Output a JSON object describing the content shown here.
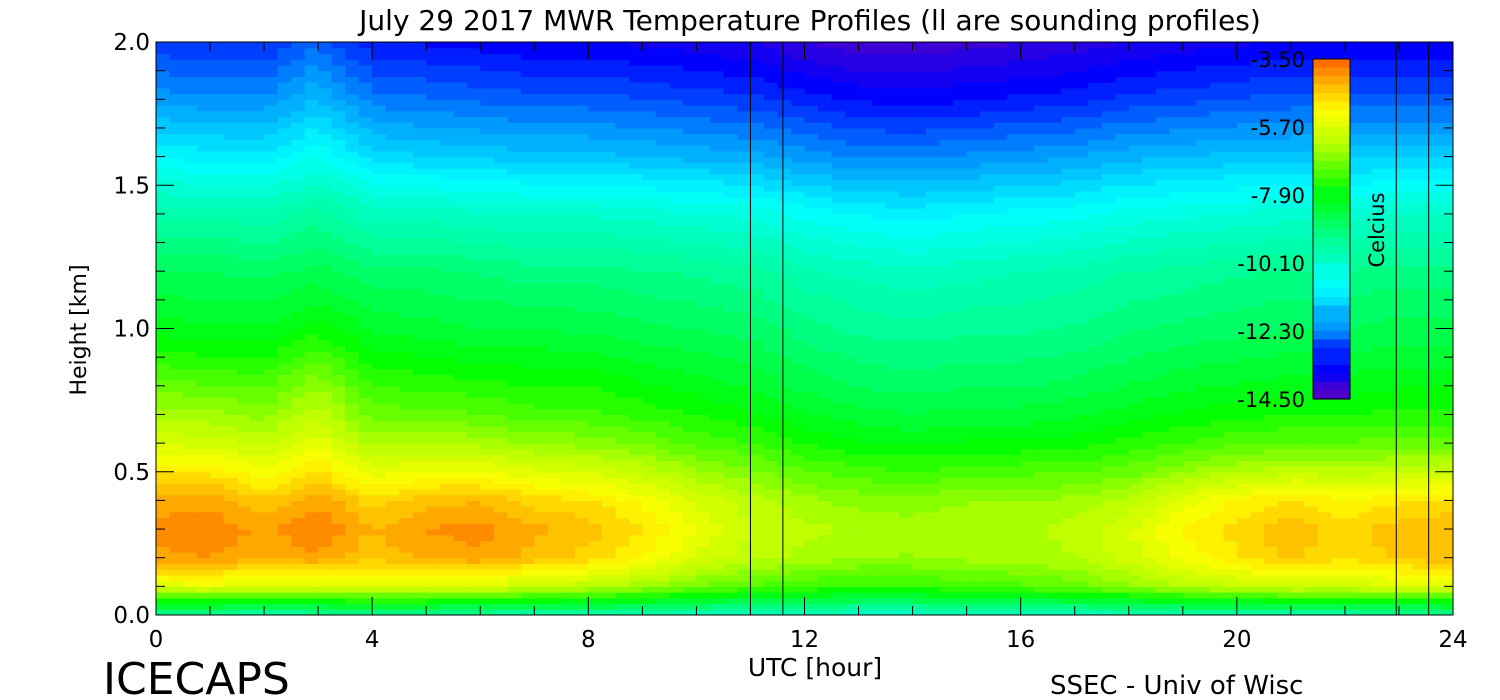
{
  "chart_data": {
    "type": "heatmap",
    "title": "July 29 2017 MWR Temperature Profiles (ll are sounding profiles)",
    "xlabel": "UTC [hour]",
    "ylabel": "Height [km]",
    "xlim": [
      0,
      24
    ],
    "ylim": [
      0,
      2
    ],
    "x_ticks": [
      "0",
      "4",
      "8",
      "12",
      "16",
      "20",
      "24"
    ],
    "y_ticks": [
      "0.0",
      "0.5",
      "1.0",
      "1.5",
      "2.0"
    ],
    "colorbar": {
      "label": "Celcius",
      "ticks": [
        "-3.50",
        "-5.70",
        "-7.90",
        "-10.10",
        "-12.30",
        "-14.50"
      ],
      "range": [
        -14.5,
        -3.5
      ]
    },
    "sounding_times_utc": [
      11.0,
      11.6,
      22.95,
      23.55
    ],
    "heights_km": [
      0.0,
      0.05,
      0.1,
      0.2,
      0.3,
      0.4,
      0.5,
      0.6,
      0.7,
      0.8,
      1.0,
      1.2,
      1.4,
      1.6,
      1.8,
      2.0
    ],
    "profiles": [
      {
        "utc": 0,
        "temps": [
          -9.5,
          -7.5,
          -5.5,
          -4.0,
          -3.8,
          -4.1,
          -4.8,
          -5.6,
          -6.2,
          -6.8,
          -7.9,
          -8.6,
          -9.5,
          -10.8,
          -12.0,
          -12.9
        ]
      },
      {
        "utc": 1,
        "temps": [
          -9.5,
          -7.5,
          -5.4,
          -3.9,
          -3.7,
          -4.0,
          -4.8,
          -5.7,
          -6.3,
          -6.9,
          -8.0,
          -8.6,
          -9.5,
          -10.9,
          -12.1,
          -13.0
        ]
      },
      {
        "utc": 2,
        "temps": [
          -9.6,
          -7.6,
          -5.6,
          -4.2,
          -4.0,
          -4.4,
          -5.2,
          -5.9,
          -6.5,
          -7.0,
          -8.0,
          -8.7,
          -9.6,
          -11.0,
          -12.1,
          -13.0
        ]
      },
      {
        "utc": 3,
        "temps": [
          -9.5,
          -7.6,
          -5.5,
          -4.0,
          -3.6,
          -4.0,
          -4.7,
          -5.4,
          -5.9,
          -6.4,
          -7.6,
          -8.5,
          -9.3,
          -10.5,
          -11.6,
          -12.5
        ]
      },
      {
        "utc": 4,
        "temps": [
          -9.4,
          -7.4,
          -5.6,
          -4.4,
          -4.2,
          -4.6,
          -5.4,
          -6.2,
          -6.8,
          -7.2,
          -8.1,
          -8.8,
          -9.8,
          -11.2,
          -12.3,
          -13.2
        ]
      },
      {
        "utc": 5,
        "temps": [
          -9.5,
          -7.5,
          -5.5,
          -4.1,
          -3.9,
          -4.3,
          -5.2,
          -6.1,
          -6.8,
          -7.3,
          -8.2,
          -8.8,
          -9.8,
          -11.3,
          -12.4,
          -13.3
        ]
      },
      {
        "utc": 6,
        "temps": [
          -9.5,
          -7.6,
          -5.6,
          -4.0,
          -3.8,
          -4.2,
          -5.2,
          -6.2,
          -6.9,
          -7.4,
          -8.3,
          -8.9,
          -9.9,
          -11.4,
          -12.5,
          -13.4
        ]
      },
      {
        "utc": 7,
        "temps": [
          -9.6,
          -7.7,
          -5.9,
          -4.3,
          -4.1,
          -4.6,
          -5.5,
          -6.4,
          -7.1,
          -7.5,
          -8.3,
          -9.0,
          -10.0,
          -11.5,
          -12.6,
          -13.5
        ]
      },
      {
        "utc": 8,
        "temps": [
          -9.6,
          -7.8,
          -6.0,
          -4.6,
          -4.3,
          -4.7,
          -5.6,
          -6.5,
          -7.1,
          -7.5,
          -8.4,
          -9.0,
          -10.0,
          -11.5,
          -12.6,
          -13.5
        ]
      },
      {
        "utc": 9,
        "temps": [
          -9.7,
          -8.0,
          -6.3,
          -5.0,
          -4.7,
          -5.1,
          -5.9,
          -6.7,
          -7.3,
          -7.7,
          -8.5,
          -9.1,
          -10.1,
          -11.6,
          -12.7,
          -13.6
        ]
      },
      {
        "utc": 10,
        "temps": [
          -9.8,
          -8.2,
          -6.7,
          -5.6,
          -5.3,
          -5.6,
          -6.3,
          -7.0,
          -7.5,
          -7.9,
          -8.6,
          -9.2,
          -10.2,
          -11.7,
          -12.8,
          -13.7
        ]
      },
      {
        "utc": 11,
        "temps": [
          -9.9,
          -8.4,
          -7.0,
          -6.0,
          -5.8,
          -6.0,
          -6.6,
          -7.2,
          -7.7,
          -8.1,
          -8.7,
          -9.3,
          -10.3,
          -11.8,
          -12.9,
          -13.8
        ]
      },
      {
        "utc": 12,
        "temps": [
          -9.9,
          -8.5,
          -7.2,
          -6.2,
          -6.0,
          -6.3,
          -6.9,
          -7.5,
          -8.0,
          -8.4,
          -9.0,
          -9.6,
          -10.6,
          -12.0,
          -13.1,
          -14.1
        ]
      },
      {
        "utc": 13,
        "temps": [
          -10.0,
          -8.6,
          -7.3,
          -6.4,
          -6.2,
          -6.5,
          -7.1,
          -7.7,
          -8.2,
          -8.6,
          -9.2,
          -9.8,
          -10.8,
          -12.2,
          -13.3,
          -14.3
        ]
      },
      {
        "utc": 14,
        "temps": [
          -10.0,
          -8.6,
          -7.3,
          -6.4,
          -6.3,
          -6.5,
          -7.2,
          -7.8,
          -8.3,
          -8.7,
          -9.3,
          -9.9,
          -10.9,
          -12.2,
          -13.4,
          -14.3
        ]
      },
      {
        "utc": 15,
        "temps": [
          -9.9,
          -8.5,
          -7.1,
          -6.3,
          -6.2,
          -6.4,
          -7.1,
          -7.7,
          -8.2,
          -8.6,
          -9.2,
          -9.8,
          -10.8,
          -12.1,
          -13.3,
          -14.2
        ]
      },
      {
        "utc": 16,
        "temps": [
          -9.8,
          -8.4,
          -7.0,
          -6.3,
          -6.2,
          -6.4,
          -7.0,
          -7.7,
          -8.2,
          -8.6,
          -9.2,
          -9.7,
          -10.7,
          -12.0,
          -13.2,
          -14.1
        ]
      },
      {
        "utc": 17,
        "temps": [
          -9.8,
          -8.3,
          -6.8,
          -6.1,
          -6.0,
          -6.3,
          -7.0,
          -7.6,
          -8.1,
          -8.5,
          -9.1,
          -9.6,
          -10.6,
          -11.9,
          -13.1,
          -14.0
        ]
      },
      {
        "utc": 18,
        "temps": [
          -9.7,
          -8.1,
          -6.5,
          -5.7,
          -5.6,
          -6.0,
          -6.8,
          -7.4,
          -7.9,
          -8.3,
          -8.9,
          -9.4,
          -10.4,
          -11.7,
          -12.9,
          -13.8
        ]
      },
      {
        "utc": 19,
        "temps": [
          -9.6,
          -7.9,
          -6.1,
          -5.2,
          -5.0,
          -5.4,
          -6.4,
          -7.2,
          -7.7,
          -8.1,
          -8.8,
          -9.3,
          -10.3,
          -11.6,
          -12.8,
          -13.7
        ]
      },
      {
        "utc": 20,
        "temps": [
          -9.5,
          -7.8,
          -5.9,
          -4.8,
          -4.6,
          -5.0,
          -6.1,
          -7.0,
          -7.6,
          -8.0,
          -8.7,
          -9.2,
          -10.2,
          -11.5,
          -12.7,
          -13.6
        ]
      },
      {
        "utc": 21,
        "temps": [
          -9.5,
          -7.7,
          -5.7,
          -4.4,
          -4.2,
          -4.7,
          -5.9,
          -6.9,
          -7.5,
          -7.9,
          -8.6,
          -9.1,
          -10.1,
          -11.5,
          -12.6,
          -13.5
        ]
      },
      {
        "utc": 22,
        "temps": [
          -9.5,
          -7.7,
          -5.8,
          -4.7,
          -4.6,
          -5.0,
          -6.0,
          -6.9,
          -7.5,
          -7.9,
          -8.6,
          -9.1,
          -10.1,
          -11.4,
          -12.6,
          -13.5
        ]
      },
      {
        "utc": 23,
        "temps": [
          -9.5,
          -7.6,
          -5.6,
          -4.4,
          -4.3,
          -4.8,
          -5.9,
          -6.8,
          -7.4,
          -7.8,
          -8.5,
          -9.0,
          -10.0,
          -11.4,
          -12.6,
          -13.5
        ]
      },
      {
        "utc": 24,
        "temps": [
          -9.5,
          -7.5,
          -5.5,
          -4.3,
          -4.2,
          -4.7,
          -5.8,
          -6.8,
          -7.4,
          -7.8,
          -8.5,
          -9.0,
          -10.0,
          -11.4,
          -12.6,
          -13.5
        ]
      }
    ]
  },
  "footer": {
    "left": "ICECAPS",
    "right": "SSEC - Univ of Wisc"
  }
}
